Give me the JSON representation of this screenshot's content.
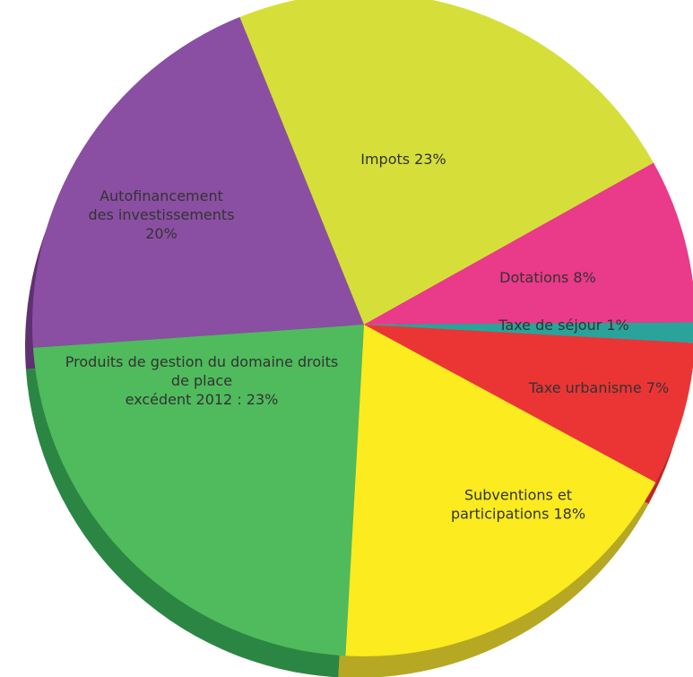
{
  "chart_data": {
    "type": "pie",
    "title": "",
    "style": "3d",
    "slices": [
      {
        "label": [
          "Impots 23%"
        ],
        "value": 23,
        "color": "#d6df3a",
        "side_color": "#b9c12d"
      },
      {
        "label": [
          "Dotations 8%"
        ],
        "value": 8,
        "color": "#ea3a8a",
        "side_color": "#c22c70"
      },
      {
        "label": [
          "Taxe de séjour 1%"
        ],
        "value": 1,
        "color": "#2aa39a",
        "side_color": "#1f857d"
      },
      {
        "label": [
          "Taxe urbanisme 7%"
        ],
        "value": 7,
        "color": "#eb3535",
        "side_color": "#bf2727"
      },
      {
        "label": [
          "Subventions et",
          "participations 18%"
        ],
        "value": 18,
        "color": "#fbeb1f",
        "side_color": "#b7a824"
      },
      {
        "label": [
          "Produits de gestion du domaine droits",
          "de place",
          "excédent 2012 : 23%"
        ],
        "value": 23,
        "color": "#4fbb5c",
        "side_color": "#2b8644"
      },
      {
        "label": [
          "Autofinancement",
          "des investissements",
          "20%"
        ],
        "value": 20,
        "color": "#8a4fa2",
        "side_color": "#5f3172"
      }
    ]
  }
}
